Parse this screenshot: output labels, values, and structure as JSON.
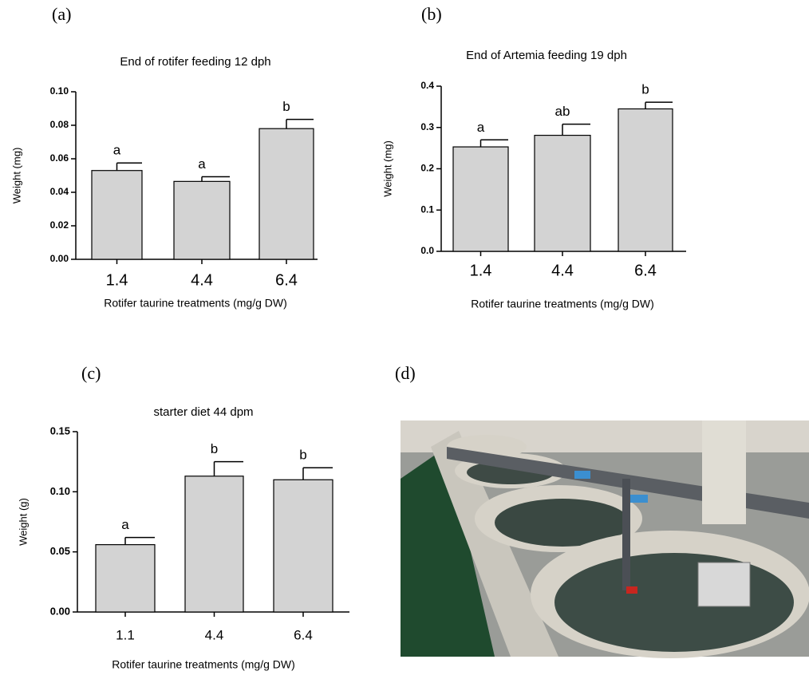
{
  "chart_data": [
    {
      "type": "bar",
      "panel": "(a)",
      "title": "End of rotifer feeding 12 dph",
      "ylabel": "Weight (mg)",
      "xlabel": "Rotifer taurine treatments (mg/g DW)",
      "categories": [
        "1.4",
        "4.4",
        "6.4"
      ],
      "values": [
        0.053,
        0.0465,
        0.078
      ],
      "errors": [
        0.0045,
        0.0028,
        0.0055
      ],
      "annotations": [
        "a",
        "a",
        "b"
      ],
      "color": "#d3d3d3",
      "ylim": [
        0,
        0.1
      ],
      "yticks": [
        {
          "value": 0,
          "label": "0.00"
        },
        {
          "value": 0.02,
          "label": "0.02"
        },
        {
          "value": 0.04,
          "label": "0.04"
        },
        {
          "value": 0.06,
          "label": "0.06"
        },
        {
          "value": 0.08,
          "label": "0.08"
        },
        {
          "value": 0.1,
          "label": "0.10"
        }
      ]
    },
    {
      "type": "bar",
      "panel": "(b)",
      "title": "End of Artemia feeding 19 dph",
      "ylabel": "Weight (mg)",
      "xlabel": "Rotifer taurine treatments (mg/g DW)",
      "categories": [
        "1.4",
        "4.4",
        "6.4"
      ],
      "values": [
        0.253,
        0.281,
        0.345
      ],
      "errors": [
        0.017,
        0.027,
        0.016
      ],
      "annotations": [
        "a",
        "ab",
        "b"
      ],
      "color": "#d3d3d3",
      "ylim": [
        0,
        0.4
      ],
      "yticks": [
        {
          "value": 0,
          "label": "0.0"
        },
        0.1,
        0.2,
        0.3,
        0.4
      ]
    },
    {
      "type": "bar",
      "panel": "(c)",
      "title": "starter diet 44 dpm",
      "ylabel": "Weight (g)",
      "xlabel": "Rotifer taurine treatments (mg/g DW)",
      "categories": [
        "1.1",
        "4.4",
        "6.4"
      ],
      "values": [
        0.056,
        0.113,
        0.11
      ],
      "errors": [
        0.006,
        0.012,
        0.01
      ],
      "annotations": [
        "a",
        "b",
        "b"
      ],
      "color": "#d3d3d3",
      "ylim": [
        0,
        0.15
      ],
      "yticks": [
        {
          "value": 0,
          "label": "0.00"
        },
        {
          "value": 0.05,
          "label": "0.05"
        },
        {
          "value": 0.1,
          "label": "0.10"
        },
        {
          "value": 0.15,
          "label": "0.15"
        }
      ]
    }
  ],
  "image_panel": {
    "label": "(d)"
  }
}
